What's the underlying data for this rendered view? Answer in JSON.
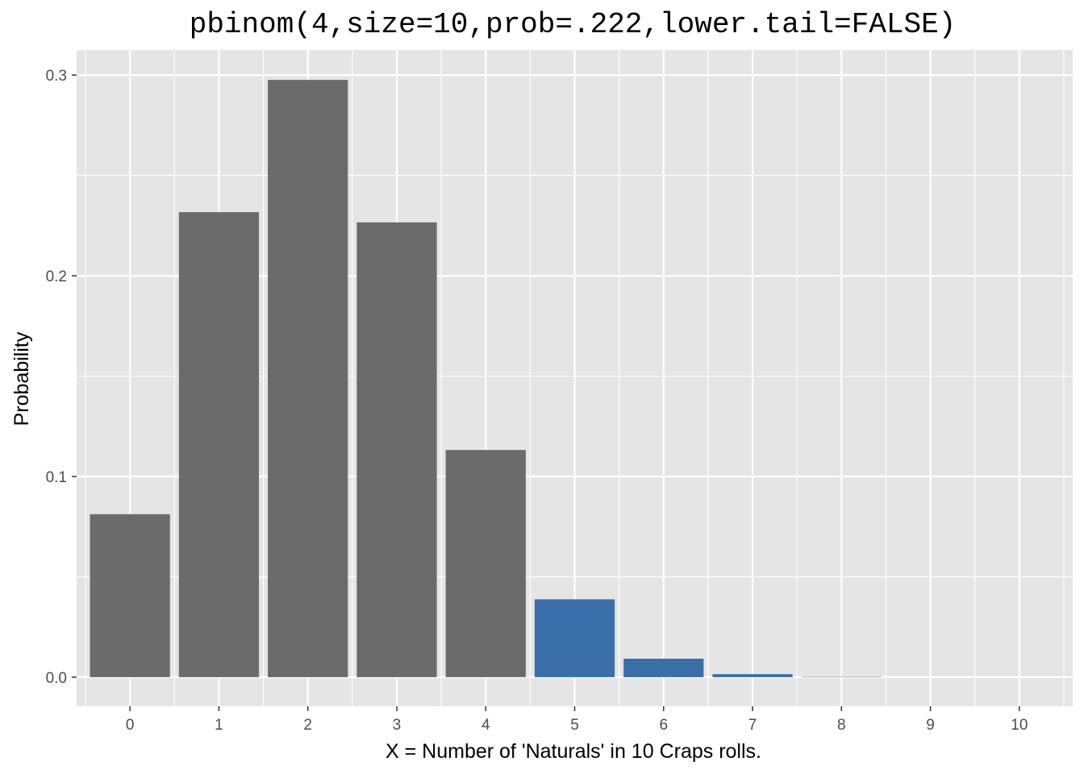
{
  "chart_data": {
    "type": "bar",
    "title": "pbinom(4,size=10,prob=.222,lower.tail=FALSE)",
    "xlabel": "X = Number of 'Naturals' in  10  Craps rolls.",
    "ylabel": "Probability",
    "categories": [
      "0",
      "1",
      "2",
      "3",
      "4",
      "5",
      "6",
      "7",
      "8",
      "9",
      "10"
    ],
    "values": [
      0.0812,
      0.2317,
      0.2976,
      0.2266,
      0.1132,
      0.0388,
      0.0092,
      0.0015,
      0.0002,
      0.0,
      0.0
    ],
    "ylim": [
      -0.0145,
      0.3125
    ],
    "yticks": [
      0.0,
      0.1,
      0.2,
      0.3
    ],
    "ytick_labels": [
      "0.0",
      "0.1",
      "0.2",
      "0.3"
    ],
    "highlight_from_index": 5,
    "grid": true,
    "colors": {
      "panel_background": "#e5e5e5",
      "grid": "#ffffff",
      "bar_default": "#6b6b6b",
      "bar_highlight": "#3a6ea8",
      "tick_text": "#4d4d4d"
    }
  }
}
